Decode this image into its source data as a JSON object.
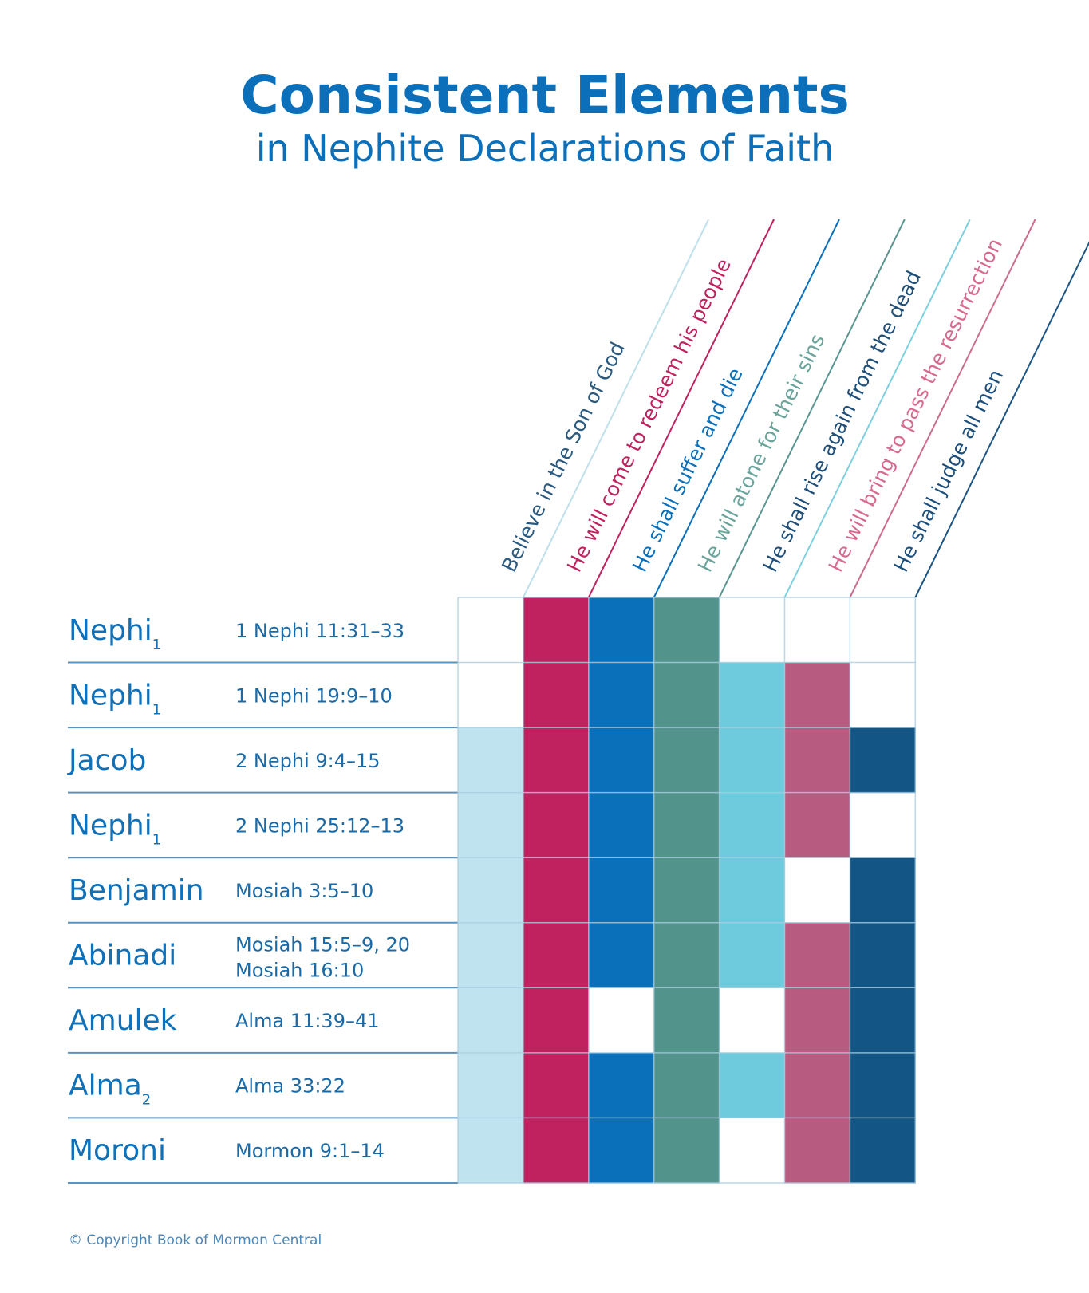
{
  "chart_data": {
    "type": "table",
    "title": "Consistent Elements",
    "subtitle": "in Nephite Declarations of Faith",
    "columns": [
      {
        "label": "Believe in the Son of God",
        "fill": "#bfe4ef",
        "line": "#bfe0ea",
        "text": "#2b5a80"
      },
      {
        "label": "He will come to redeem his people",
        "fill": "#c0225f",
        "line": "#c0225f",
        "text": "#c0225f"
      },
      {
        "label": "He shall suffer and die",
        "fill": "#0b70ba",
        "line": "#0b70ba",
        "text": "#0b70ba"
      },
      {
        "label": "He will atone for their sins",
        "fill": "#52938c",
        "line": "#5a9590",
        "text": "#6aa39a"
      },
      {
        "label": "He shall rise again from the dead",
        "fill": "#6dcbdd",
        "line": "#7fd0de",
        "text": "#1f4f78"
      },
      {
        "label": "He will bring to pass the resurrection",
        "fill": "#b85b80",
        "line": "#cc6d8e",
        "text": "#d76a90"
      },
      {
        "label": "He shall judge all men",
        "fill": "#135585",
        "line": "#1c5584",
        "text": "#1c4f7c"
      }
    ],
    "rows": [
      {
        "name": "Nephi",
        "sub": "1",
        "refs": [
          "1 Nephi 11:31–33"
        ],
        "cells": [
          0,
          1,
          1,
          1,
          0,
          0,
          0
        ]
      },
      {
        "name": "Nephi",
        "sub": "1",
        "refs": [
          "1 Nephi 19:9–10"
        ],
        "cells": [
          0,
          1,
          1,
          1,
          1,
          1,
          0
        ]
      },
      {
        "name": "Jacob",
        "sub": "",
        "refs": [
          "2 Nephi 9:4–15"
        ],
        "cells": [
          1,
          1,
          1,
          1,
          1,
          1,
          1
        ]
      },
      {
        "name": "Nephi",
        "sub": "1",
        "refs": [
          "2 Nephi 25:12–13"
        ],
        "cells": [
          1,
          1,
          1,
          1,
          1,
          1,
          0
        ]
      },
      {
        "name": "Benjamin",
        "sub": "",
        "refs": [
          "Mosiah 3:5–10"
        ],
        "cells": [
          1,
          1,
          1,
          1,
          1,
          0,
          1
        ]
      },
      {
        "name": "Abinadi",
        "sub": "",
        "refs": [
          "Mosiah 15:5–9, 20",
          "Mosiah 16:10"
        ],
        "cells": [
          1,
          1,
          1,
          1,
          1,
          1,
          1
        ]
      },
      {
        "name": "Amulek",
        "sub": "",
        "refs": [
          "Alma 11:39–41"
        ],
        "cells": [
          1,
          1,
          0,
          1,
          0,
          1,
          1
        ]
      },
      {
        "name": "Alma",
        "sub": "2",
        "refs": [
          "Alma 33:22"
        ],
        "cells": [
          1,
          1,
          1,
          1,
          1,
          1,
          1
        ]
      },
      {
        "name": "Moroni",
        "sub": "",
        "refs": [
          "Mormon 9:1–14"
        ],
        "cells": [
          1,
          1,
          1,
          1,
          0,
          1,
          1
        ]
      }
    ],
    "grid_color": "#a9cde0",
    "row_line_color": "#5b93bd"
  },
  "footer": {
    "copyright": "© Copyright Book of Mormon Central"
  }
}
